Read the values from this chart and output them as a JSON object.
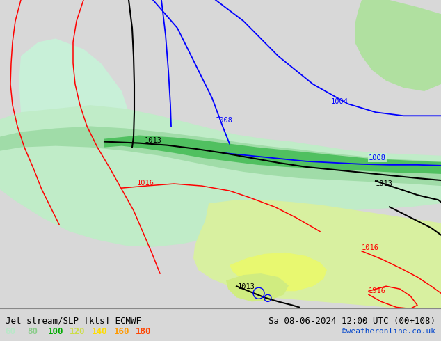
{
  "title_left": "Jet stream/SLP [kts] ECMWF",
  "title_right": "Sa 08-06-2024 12:00 UTC (00+108)",
  "credit": "©weatheronline.co.uk",
  "legend_values": [
    60,
    80,
    100,
    120,
    140,
    160,
    180
  ],
  "legend_colors": [
    "#b8e8c8",
    "#88cc88",
    "#00aa00",
    "#ccdd44",
    "#ffdd00",
    "#ff9900",
    "#ff4400"
  ],
  "bg_color": "#d8d8d8",
  "map_bg": "#d8d8d8",
  "text_color": "#000000",
  "title_fontsize": 9,
  "legend_fontsize": 9,
  "credit_color": "#0044cc",
  "credit_fontsize": 8
}
